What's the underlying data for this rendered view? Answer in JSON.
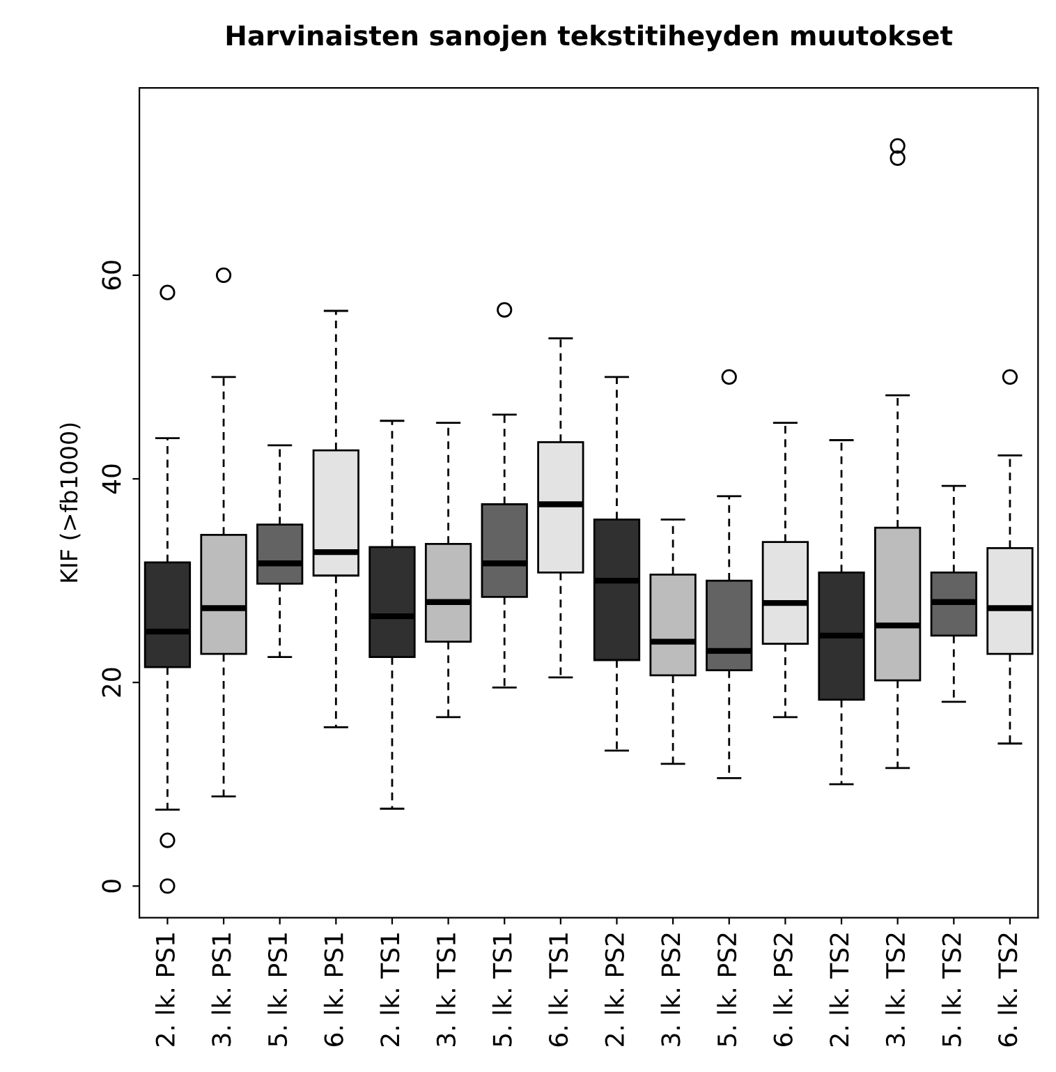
{
  "chart_data": {
    "type": "box",
    "title": "Harvinaisten sanojen tekstitiheyden muutokset",
    "ylabel": "KIF (>fb1000)",
    "categories": [
      "2. lk. PS1",
      "3. lk. PS1",
      "5. lk. PS1",
      "6. lk. PS1",
      "2. lk. TS1",
      "3. lk. TS1",
      "5. lk. TS1",
      "6. lk. TS1",
      "2. lk. PS2",
      "3. lk. PS2",
      "5. lk. PS2",
      "6. lk. PS2",
      "2. lk. TS2",
      "3. lk. TS2",
      "5. lk. TS2",
      "6. lk. TS2"
    ],
    "colors": [
      "#303030",
      "#bcbcbc",
      "#636363",
      "#e3e3e3",
      "#303030",
      "#bcbcbc",
      "#636363",
      "#e3e3e3",
      "#303030",
      "#bcbcbc",
      "#636363",
      "#e3e3e3",
      "#303030",
      "#bcbcbc",
      "#636363",
      "#e3e3e3"
    ],
    "boxes": [
      {
        "low": 7.5,
        "q1": 21.5,
        "median": 25,
        "q3": 31.8,
        "high": 44,
        "outliers": [
          58.3,
          4.5,
          0
        ]
      },
      {
        "low": 8.8,
        "q1": 22.8,
        "median": 27.3,
        "q3": 34.5,
        "high": 50,
        "outliers": [
          60
        ]
      },
      {
        "low": 22.5,
        "q1": 29.7,
        "median": 31.7,
        "q3": 35.5,
        "high": 43.3
      },
      {
        "low": 15.6,
        "q1": 30.5,
        "median": 32.8,
        "q3": 42.8,
        "high": 56.5
      },
      {
        "low": 7.6,
        "q1": 22.5,
        "median": 26.5,
        "q3": 33.3,
        "high": 45.7
      },
      {
        "low": 16.6,
        "q1": 24,
        "median": 27.9,
        "q3": 33.6,
        "high": 45.5
      },
      {
        "low": 19.5,
        "q1": 28.4,
        "median": 31.7,
        "q3": 37.5,
        "high": 46.3,
        "outliers": [
          56.6
        ]
      },
      {
        "low": 20.5,
        "q1": 30.8,
        "median": 37.5,
        "q3": 43.6,
        "high": 53.8
      },
      {
        "low": 13.3,
        "q1": 22.2,
        "median": 30,
        "q3": 36,
        "high": 50
      },
      {
        "low": 12,
        "q1": 20.7,
        "median": 24,
        "q3": 30.6,
        "high": 36
      },
      {
        "low": 10.6,
        "q1": 21.2,
        "median": 23.1,
        "q3": 30,
        "high": 38.3,
        "outliers": [
          50
        ]
      },
      {
        "low": 16.6,
        "q1": 23.8,
        "median": 27.8,
        "q3": 33.8,
        "high": 45.5
      },
      {
        "low": 10,
        "q1": 18.3,
        "median": 24.6,
        "q3": 30.8,
        "high": 43.8
      },
      {
        "low": 11.6,
        "q1": 20.2,
        "median": 25.6,
        "q3": 35.2,
        "high": 48.2,
        "outliers": [
          72.7,
          71.5
        ]
      },
      {
        "low": 18.1,
        "q1": 24.6,
        "median": 27.9,
        "q3": 30.8,
        "high": 39.3
      },
      {
        "low": 14,
        "q1": 22.8,
        "median": 27.3,
        "q3": 33.2,
        "high": 42.3,
        "outliers": [
          50
        ]
      }
    ],
    "ylim": [
      -3.1,
      78.4
    ],
    "yticks": [
      0,
      20,
      40,
      60
    ],
    "grid": false,
    "legend": false
  }
}
